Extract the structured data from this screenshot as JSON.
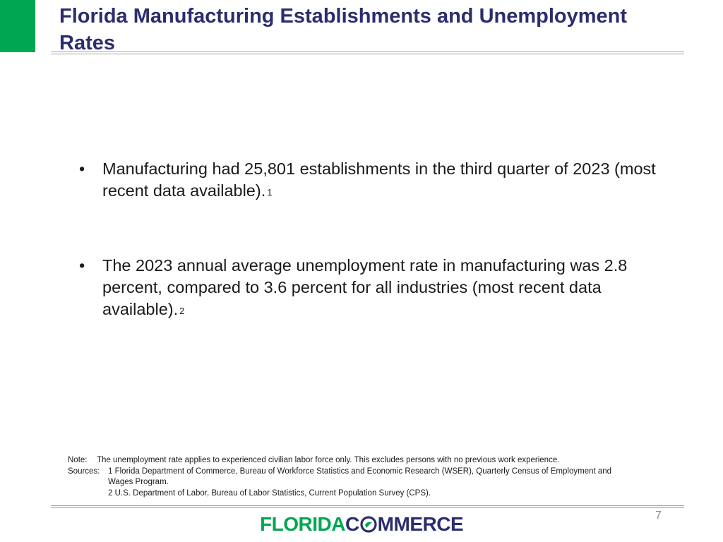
{
  "slide": {
    "title": "Florida Manufacturing Establishments and Unemployment Rates",
    "page_number": "7"
  },
  "bullets": [
    {
      "text": "Manufacturing had 25,801 establishments in the third quarter of 2023 (most recent data available).",
      "superscript": "1"
    },
    {
      "text": "The 2023 annual average unemployment rate in manufacturing was 2.8 percent, compared to 3.6 percent for all industries (most recent data available).",
      "superscript": "2"
    }
  ],
  "footnotes": {
    "note_label": "Note:",
    "note_text": "The unemployment rate applies to experienced civilian labor force only. This excludes persons with no previous work experience.",
    "sources_label": "Sources:",
    "source_1_line1": "1 Florida Department of Commerce, Bureau of Workforce Statistics and Economic Research (WSER), Quarterly Census of Employment and",
    "source_1_line2": "Wages Program.",
    "source_2": "2 U.S. Department of Labor, Bureau of Labor Statistics, Current Population Survey (CPS)."
  },
  "logo": {
    "part1": "FLORIDA",
    "part2_prefix": "C",
    "part2_suffix": "MMERCE"
  },
  "colors": {
    "accent_green": "#00a651",
    "title_navy": "#2b2d6e",
    "rule_gray": "#a6a6a6"
  }
}
